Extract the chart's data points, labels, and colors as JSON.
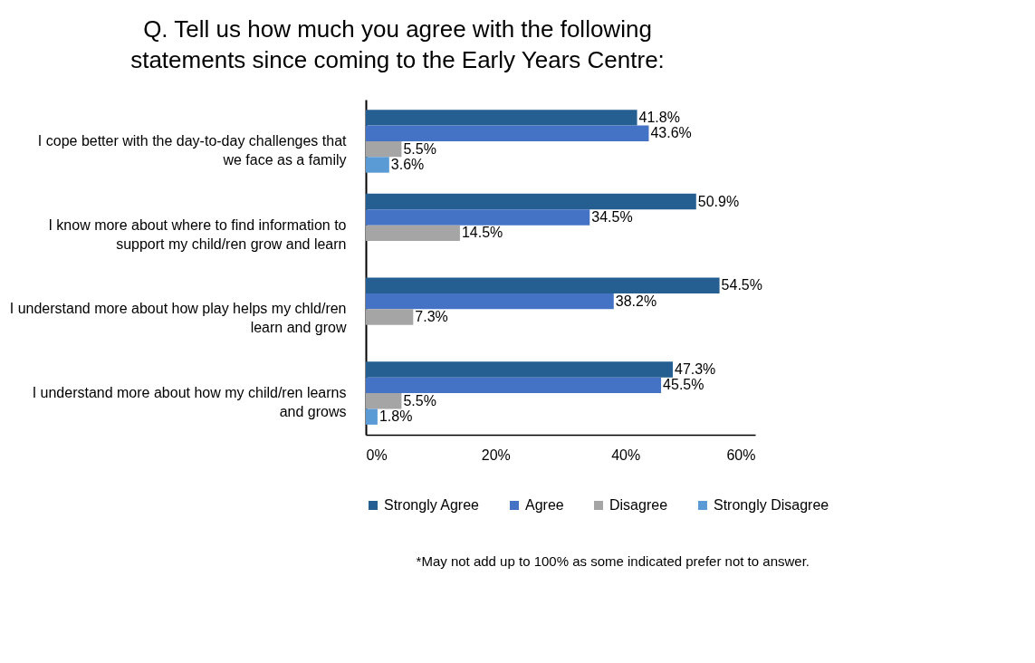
{
  "chart_data": {
    "type": "bar",
    "orientation": "horizontal",
    "title": "Q. Tell us how much you agree with the following statements since coming to the Early Years Centre:",
    "categories": [
      "I cope better with the day-to-day challenges that we face as a family",
      "I know more about where to find information to support my child/ren grow and learn",
      "I understand more about how play helps my chld/ren learn and grow",
      "I understand more about how my child/ren learns and grows"
    ],
    "series": [
      {
        "name": "Strongly Agree",
        "color": "#255e91",
        "values": [
          41.8,
          50.9,
          54.5,
          47.3
        ],
        "value_labels": [
          "41.8%",
          "50.9%",
          "54.5%",
          "47.3%"
        ]
      },
      {
        "name": "Agree",
        "color": "#4472c4",
        "values": [
          43.6,
          34.5,
          38.2,
          45.5
        ],
        "value_labels": [
          "43.6%",
          "34.5%",
          "38.2%",
          "45.5%"
        ]
      },
      {
        "name": "Disagree",
        "color": "#a5a5a5",
        "values": [
          5.5,
          14.5,
          7.3,
          5.5
        ],
        "value_labels": [
          "5.5%",
          "14.5%",
          "7.3%",
          "5.5%"
        ]
      },
      {
        "name": "Strongly Disagree",
        "color": "#5b9bd5",
        "values": [
          3.6,
          null,
          null,
          1.8
        ],
        "value_labels": [
          "3.6%",
          null,
          null,
          "1.8%"
        ]
      }
    ],
    "xlim": [
      0,
      60
    ],
    "xticks": [
      {
        "value": 0,
        "label": "0%"
      },
      {
        "value": 20,
        "label": "20%"
      },
      {
        "value": 40,
        "label": "40%"
      },
      {
        "value": 60,
        "label": "60%"
      }
    ],
    "grid": false,
    "legend": "bottom",
    "annotations": [
      "*May not add up to 100% as some indicated prefer not to answer."
    ]
  }
}
